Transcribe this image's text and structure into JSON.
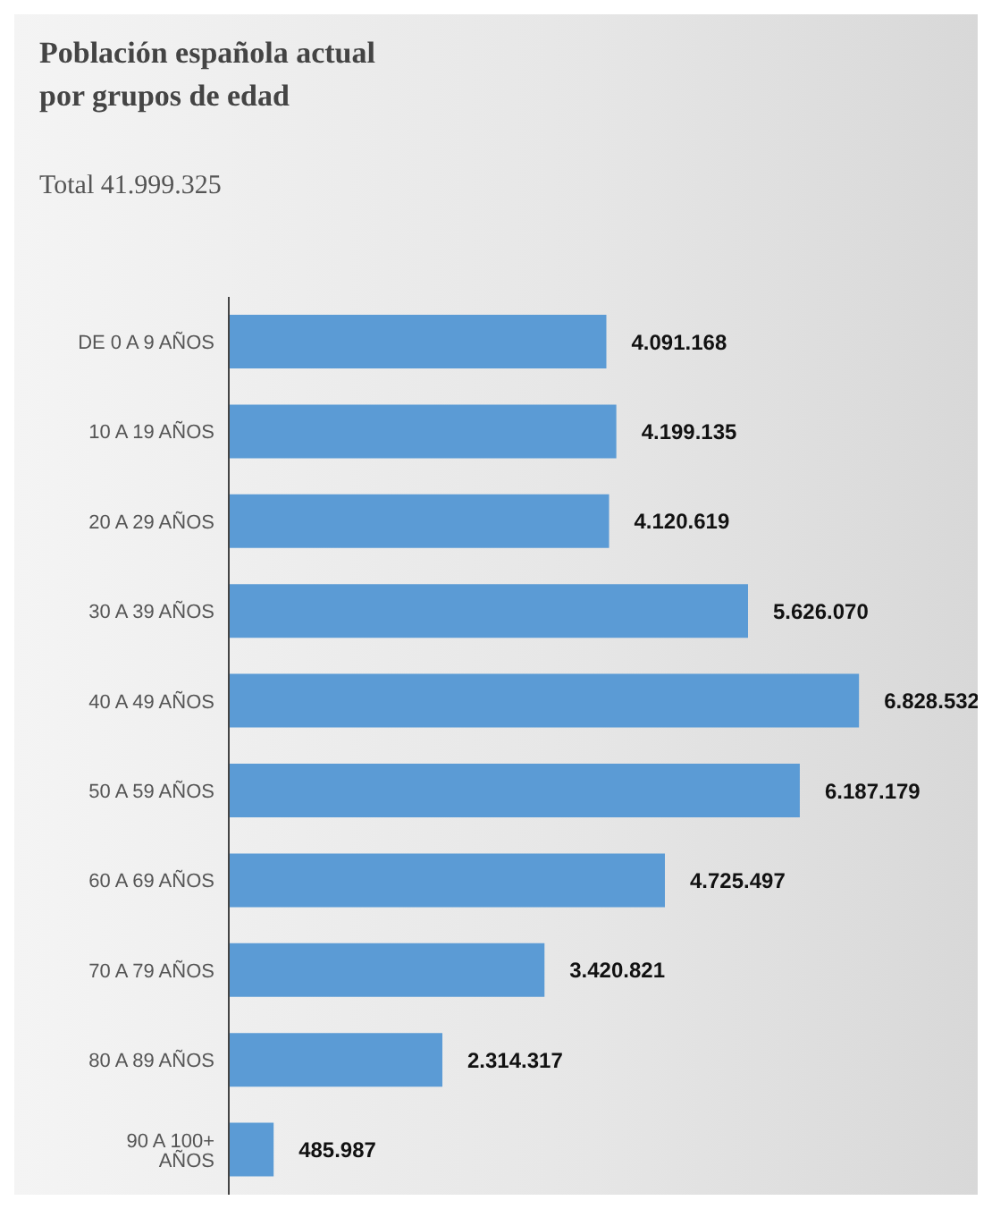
{
  "chart_data": {
    "type": "bar",
    "orientation": "horizontal",
    "title": "Población española actual por grupos de edad",
    "subtitle": "Total 41.999.325",
    "categories": [
      "DE 0 A 9 AÑOS",
      "10 A 19 AÑOS",
      "20 A 29 AÑOS",
      "30 A 39 AÑOS",
      "40 A 49 AÑOS",
      "50 A 59 AÑOS",
      "60 A 69 AÑOS",
      "70 A 79 AÑOS",
      "80 A 89 AÑOS",
      "90 A 100+ AÑOS"
    ],
    "values": [
      4091168,
      4199135,
      4120619,
      5626070,
      6828532,
      6187179,
      4725497,
      3420821,
      2314317,
      485987
    ],
    "value_labels": [
      "4.091.168",
      "4.199.135",
      "4.120.619",
      "5.626.070",
      "6.828.532",
      "6.187.179",
      "4.725.497",
      "3.420.821",
      "2.314.317",
      "485.987"
    ],
    "color": "#5b9bd5",
    "grid": false,
    "legend": false
  }
}
